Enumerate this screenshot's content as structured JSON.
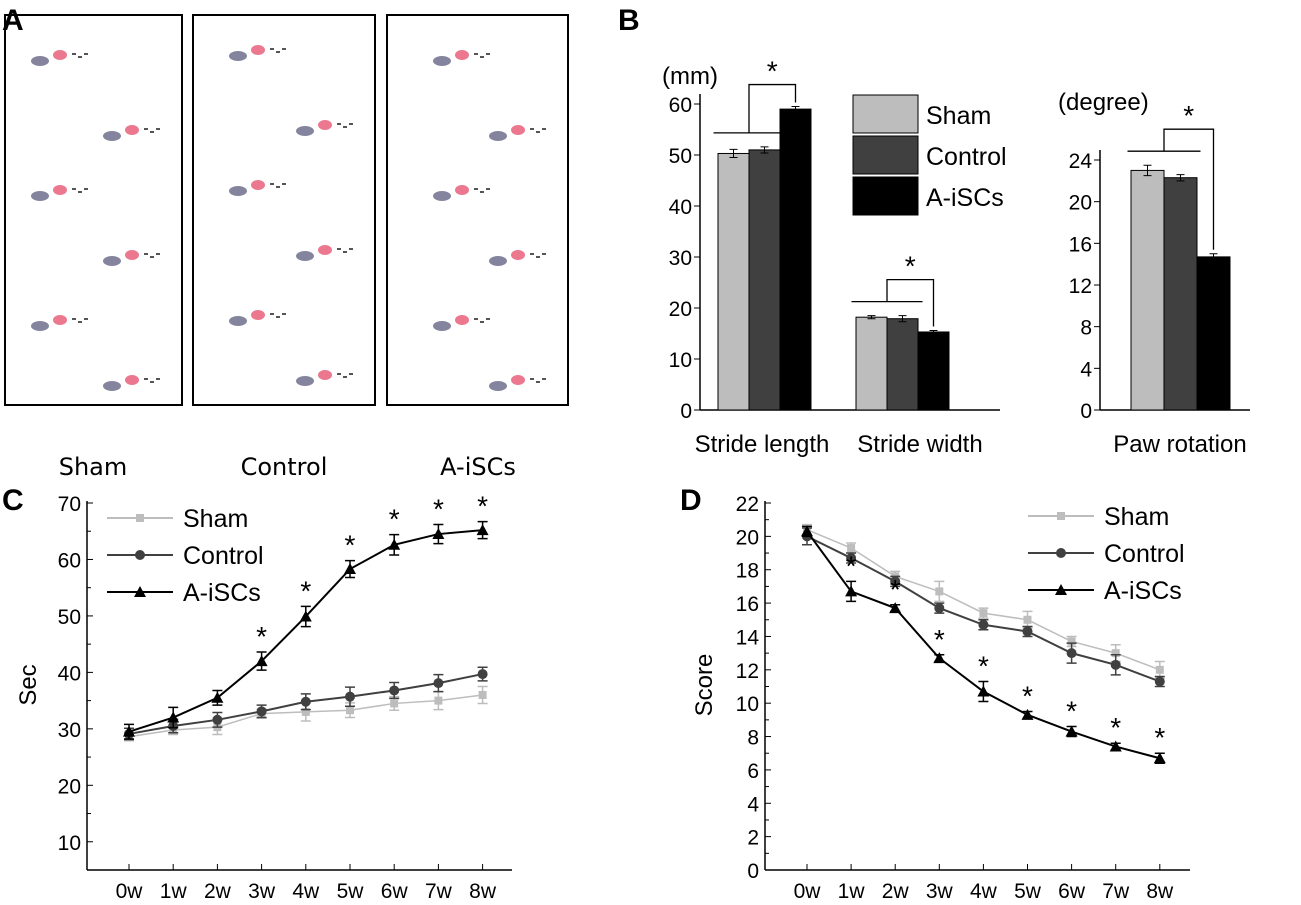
{
  "panels": {
    "A": {
      "label": "A",
      "groups": [
        "Sham",
        "Control",
        "A-iSCs"
      ],
      "colors": {
        "hind": "#e8607a",
        "fore": "#5b5b7e"
      }
    },
    "B": {
      "label": "B"
    },
    "C": {
      "label": "C"
    },
    "D": {
      "label": "D"
    }
  },
  "colors": {
    "Sham": "#bdbdbd",
    "Control": "#404040",
    "A-iSCs": "#000000"
  },
  "chart_data": [
    {
      "id": "B1",
      "type": "bar",
      "ylabel": "(mm)",
      "ylim": [
        0,
        60
      ],
      "yticks": [
        0,
        10,
        20,
        30,
        40,
        50,
        60
      ],
      "categories": [
        "Stride length",
        "Stride width"
      ],
      "legend": {
        "position": "top-right"
      },
      "series": [
        {
          "name": "Sham",
          "values": [
            50.3,
            18.2
          ],
          "errors": [
            0.8,
            0.3
          ]
        },
        {
          "name": "Control",
          "values": [
            51.0,
            17.9
          ],
          "errors": [
            0.6,
            0.6
          ]
        },
        {
          "name": "A-iSCs",
          "values": [
            59.0,
            15.3
          ],
          "errors": [
            0.5,
            0.3
          ]
        }
      ],
      "annotations": [
        "*",
        "*"
      ]
    },
    {
      "id": "B2",
      "type": "bar",
      "ylabel": "(degree)",
      "ylim": [
        0,
        24
      ],
      "yticks": [
        0,
        4,
        8,
        12,
        16,
        20,
        24
      ],
      "categories": [
        "Paw rotation"
      ],
      "series": [
        {
          "name": "Sham",
          "values": [
            23.0
          ],
          "errors": [
            0.5
          ]
        },
        {
          "name": "Control",
          "values": [
            22.3
          ],
          "errors": [
            0.3
          ]
        },
        {
          "name": "A-iSCs",
          "values": [
            14.7
          ],
          "errors": [
            0.3
          ]
        }
      ],
      "annotations": [
        "*"
      ]
    },
    {
      "id": "C",
      "type": "line",
      "ylabel": "Sec",
      "ylim": [
        5,
        70
      ],
      "yticks": [
        10,
        20,
        30,
        40,
        50,
        60,
        70
      ],
      "x": [
        "0w",
        "1w",
        "2w",
        "3w",
        "4w",
        "5w",
        "6w",
        "7w",
        "8w"
      ],
      "legend": {
        "position": "top-left"
      },
      "series": [
        {
          "name": "Sham",
          "marker": "square",
          "values": [
            28.6,
            29.8,
            30.3,
            32.7,
            33.0,
            33.3,
            34.5,
            35.0,
            36.0
          ],
          "errors": [
            0.7,
            0.8,
            1.3,
            0.8,
            1.6,
            1.3,
            1.2,
            1.6,
            1.5
          ]
        },
        {
          "name": "Control",
          "marker": "circle",
          "values": [
            29.1,
            30.5,
            31.6,
            33.1,
            34.8,
            35.7,
            36.8,
            38.1,
            39.7
          ],
          "errors": [
            1.0,
            1.2,
            1.3,
            1.1,
            1.4,
            1.7,
            1.4,
            1.5,
            1.2
          ]
        },
        {
          "name": "A-iSCs",
          "marker": "triangle",
          "values": [
            29.5,
            32.0,
            35.5,
            42.0,
            49.9,
            58.3,
            62.6,
            64.5,
            65.2
          ],
          "errors": [
            1.3,
            1.8,
            1.3,
            1.6,
            1.8,
            1.5,
            1.8,
            1.7,
            1.5
          ]
        }
      ],
      "significance": [
        "",
        "",
        "",
        "*",
        "*",
        "*",
        "*",
        "*",
        "*"
      ]
    },
    {
      "id": "D",
      "type": "line",
      "ylabel": "Score",
      "ylim": [
        0,
        22
      ],
      "yticks": [
        0,
        2,
        4,
        6,
        8,
        10,
        12,
        14,
        16,
        18,
        20,
        22
      ],
      "x": [
        "0w",
        "1w",
        "2w",
        "3w",
        "4w",
        "5w",
        "6w",
        "7w",
        "8w"
      ],
      "legend": {
        "position": "top-right"
      },
      "series": [
        {
          "name": "Sham",
          "marker": "square",
          "values": [
            20.4,
            19.3,
            17.6,
            16.7,
            15.4,
            15.0,
            13.7,
            13.0,
            12.0
          ],
          "errors": [
            0.3,
            0.3,
            0.3,
            0.6,
            0.3,
            0.5,
            0.3,
            0.5,
            0.5
          ]
        },
        {
          "name": "Control",
          "marker": "circle",
          "values": [
            20.0,
            18.7,
            17.3,
            15.7,
            14.7,
            14.3,
            13.0,
            12.3,
            11.3
          ],
          "errors": [
            0.5,
            0.3,
            0.3,
            0.3,
            0.3,
            0.3,
            0.6,
            0.6,
            0.3
          ]
        },
        {
          "name": "A-iSCs",
          "marker": "triangle",
          "values": [
            20.3,
            16.7,
            15.7,
            12.7,
            10.7,
            9.3,
            8.3,
            7.4,
            6.7
          ],
          "errors": [
            0.3,
            0.6,
            0.2,
            0.2,
            0.6,
            0.2,
            0.3,
            0.2,
            0.3
          ]
        }
      ],
      "significance": [
        "",
        "*",
        "*",
        "*",
        "*",
        "*",
        "*",
        "*",
        "*"
      ]
    }
  ]
}
